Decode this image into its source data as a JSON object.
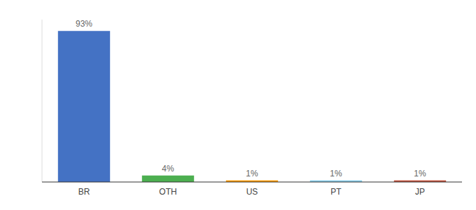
{
  "chart_data": {
    "type": "bar",
    "categories": [
      "BR",
      "OTH",
      "US",
      "PT",
      "JP"
    ],
    "values": [
      93,
      4,
      1,
      1,
      1
    ],
    "value_labels": [
      "93%",
      "4%",
      "1%",
      "1%",
      "1%"
    ],
    "colors": [
      "#4472c4",
      "#4caf50",
      "#ff9800",
      "#87ceeb",
      "#c0503a"
    ],
    "ylim": [
      0,
      100
    ],
    "grid": false,
    "data_labels": true,
    "tick_labels": "x"
  }
}
